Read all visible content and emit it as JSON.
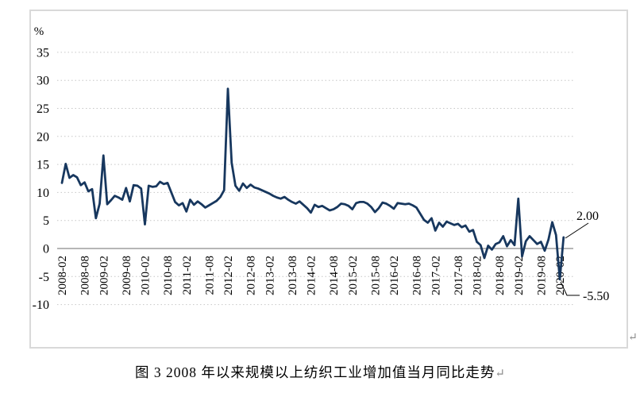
{
  "figure": {
    "caption": "图 3 2008 年以来规模以上纺织工业增加值当月同比走势",
    "caption_return_mark": "↵",
    "chart_return_mark": "↵"
  },
  "chart_data": {
    "type": "line",
    "title": "图 3 2008 年以来规模以上纺织工业增加值当月同比走势",
    "ylabel": "%",
    "ylim": [
      -10,
      35
    ],
    "ytick_interval": 5,
    "yticks": [
      35,
      30,
      25,
      20,
      15,
      10,
      5,
      0,
      -5,
      -10
    ],
    "xtick_labels": [
      "2008-02",
      "2008-08",
      "2009-02",
      "2009-08",
      "2010-02",
      "2010-08",
      "2011-02",
      "2011-08",
      "2012-02",
      "2012-08",
      "2013-02",
      "2013-08",
      "2014-02",
      "2014-08",
      "2015-02",
      "2015-08",
      "2016-02",
      "2016-08",
      "2017-02",
      "2017-08",
      "2018-02",
      "2018-08",
      "2019-02",
      "2019-08",
      "2020-02"
    ],
    "x_frequency": "monthly, Feb-Dec each year (January omitted), from 2008-02 to 2020-03",
    "grid": "dotted horizontal gridlines, solid gray zero axis line",
    "legend_position": "none",
    "line_color": "#17375E",
    "grid_color": "#c6c6c6",
    "zero_axis_color": "#9e9e9e",
    "frame_color": "#d9d9d9",
    "series": [
      {
        "name": "规模以上纺织工业增加值当月同比(%)",
        "values_by_year": {
          "2008": [
            11.7,
            15.1,
            12.6,
            13.1,
            12.7,
            11.3,
            11.8,
            10.2,
            10.6,
            5.4,
            8.0
          ],
          "2009": [
            16.6,
            7.9,
            8.6,
            9.4,
            9.1,
            8.7,
            10.8,
            8.4,
            11.3,
            11.2,
            10.7
          ],
          "2010": [
            4.3,
            11.2,
            11.0,
            11.1,
            11.9,
            11.5,
            11.7,
            10.0,
            8.3,
            7.7,
            8.1
          ],
          "2011": [
            6.6,
            8.7,
            7.8,
            8.4,
            7.9,
            7.3,
            7.7,
            8.1,
            8.5,
            9.2,
            10.4
          ],
          "2012": [
            28.5,
            15.3,
            11.2,
            10.3,
            11.6,
            10.8,
            11.4,
            10.9,
            10.7,
            10.4,
            10.1
          ],
          "2013": [
            9.8,
            9.4,
            9.1,
            8.9,
            9.2,
            8.7,
            8.3,
            8.0,
            8.4,
            7.8,
            7.2
          ],
          "2014": [
            6.4,
            7.8,
            7.4,
            7.6,
            7.2,
            6.8,
            7.0,
            7.4,
            8.0,
            7.9,
            7.6
          ],
          "2015": [
            7.0,
            8.1,
            8.3,
            8.3,
            8.0,
            7.4,
            6.5,
            7.2,
            8.2,
            8.0,
            7.6
          ],
          "2016": [
            7.1,
            8.1,
            8.0,
            7.9,
            8.0,
            7.7,
            7.3,
            6.2,
            5.1,
            4.6,
            5.4
          ],
          "2017": [
            3.2,
            4.6,
            3.9,
            4.8,
            4.5,
            4.2,
            4.4,
            3.8,
            4.1,
            3.0,
            3.3
          ],
          "2018": [
            1.2,
            0.6,
            -1.7,
            0.5,
            -0.2,
            0.8,
            1.1,
            2.2,
            0.4,
            1.5,
            0.6
          ],
          "2019": [
            8.9,
            -1.4,
            1.3,
            2.2,
            1.5,
            0.8,
            1.2,
            -0.4,
            1.6,
            4.7,
            2.4
          ],
          "2020": [
            -5.5,
            2.0
          ]
        }
      }
    ],
    "annotations": [
      {
        "text": "2.00",
        "month": "2020-03",
        "value": 2.0
      },
      {
        "text": "-5.50",
        "month": "2020-02",
        "value": -5.5
      }
    ]
  }
}
